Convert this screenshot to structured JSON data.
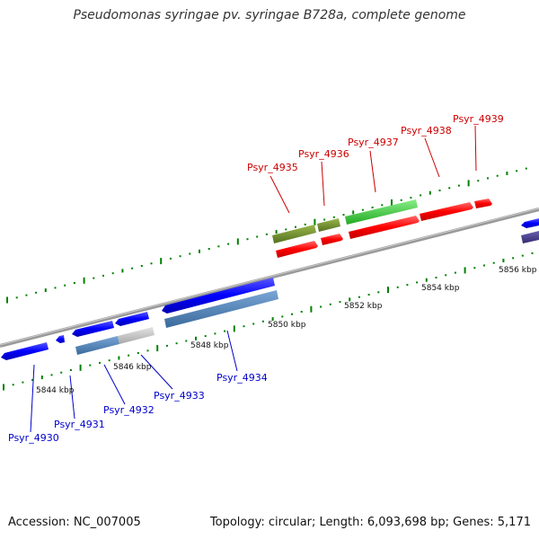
{
  "title": "Pseudomonas syringae pv. syringae B728a, complete genome",
  "footer": {
    "accession": "Accession: NC_007005",
    "stats": "Topology: circular; Length: 6,093,698 bp; Genes: 5,171"
  },
  "ticks": [
    "5844 kbp",
    "5846 kbp",
    "5848 kbp",
    "5850 kbp",
    "5852 kbp",
    "5854 kbp",
    "5856 kbp"
  ],
  "genes_top": [
    {
      "label": "Psyr_4935",
      "color": "#cc0000"
    },
    {
      "label": "Psyr_4936",
      "color": "#cc0000"
    },
    {
      "label": "Psyr_4937",
      "color": "#cc0000"
    },
    {
      "label": "Psyr_4938",
      "color": "#cc0000"
    },
    {
      "label": "Psyr_4939",
      "color": "#cc0000"
    }
  ],
  "genes_bottom": [
    {
      "label": "Psyr_4930",
      "color": "#0000cc"
    },
    {
      "label": "Psyr_4931",
      "color": "#0000cc"
    },
    {
      "label": "Psyr_4932",
      "color": "#0000cc"
    },
    {
      "label": "Psyr_4933",
      "color": "#0000cc"
    },
    {
      "label": "Psyr_4934",
      "color": "#0000cc"
    }
  ],
  "colors": {
    "forward_cds": "#ff0000",
    "reverse_cds": "#0000ff",
    "backbone": "#888888",
    "gc_skew": "#008000",
    "olive": "#6b8e23",
    "lime": "#44cc44",
    "steel": "#4a7fb5",
    "grey_feature": "#bbbbbb",
    "slate": "#483d8b"
  }
}
